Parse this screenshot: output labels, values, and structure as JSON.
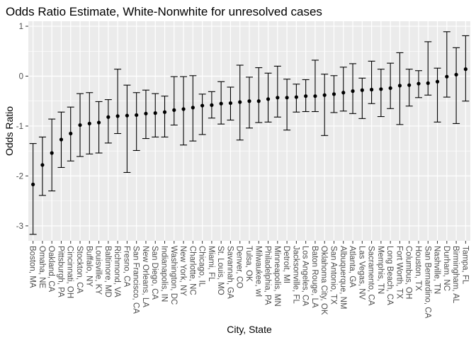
{
  "chart_data": {
    "type": "errorbar",
    "title": "Odds Ratio Estimate, White-Nonwhite for unresolved cases",
    "xlabel": "City, State",
    "ylabel": "Odds Ratio",
    "ylim": [
      -3.3,
      1.1
    ],
    "yticks": [
      -3,
      -2,
      -1,
      0,
      1
    ],
    "grid": true,
    "background": "#ebebeb",
    "grid_color": "#ffffff",
    "point_color": "#000000",
    "categories": [
      "Boston, MA",
      "Omaha, NE",
      "Oakland, CA",
      "Pittsburgh, PA",
      "Cincinnati, OH",
      "Stockton, CA",
      "Buffalo, NY",
      "Louisville, KY",
      "Baltimore, MD",
      "Richmond, VA",
      "Fresno, CA",
      "San Francisco, CA",
      "New Orleans, LA",
      "San Diego, CA",
      "Indianapolis, IN",
      "Washington, DC",
      "New York, NY",
      "Charlotte, NC",
      "Chicago, IL",
      "Miami, FL",
      "St. Louis, MO",
      "Savannah, GA",
      "Denver, CO",
      "Tulsa, OK",
      "Milwaukee, wI",
      "Philadelphia, PA",
      "Minneapolis, MN",
      "Detroit, MI",
      "Jacksonville, FL",
      "Los Angeles, CA",
      "Baton Rouge, LA",
      "Oklahoma City, OK",
      "San Antonio, TX",
      "Albuquerque, NM",
      "Atlanta, GA",
      "Las Vegas, NV",
      "Sacramento, CA",
      "Memphis, TN",
      "Long Beach, CA",
      "Fort Worth, TX",
      "Columbus, OH",
      "Houston, TX",
      "San Bernardino, CA",
      "Nashville, TN",
      "Durham, NC",
      "Birmingham, AL",
      "Tampa, FL"
    ],
    "estimates": [
      -2.17,
      -1.78,
      -1.54,
      -1.27,
      -1.15,
      -0.98,
      -0.95,
      -0.93,
      -0.82,
      -0.8,
      -0.79,
      -0.78,
      -0.75,
      -0.74,
      -0.72,
      -0.68,
      -0.66,
      -0.63,
      -0.59,
      -0.58,
      -0.55,
      -0.54,
      -0.52,
      -0.5,
      -0.5,
      -0.46,
      -0.43,
      -0.43,
      -0.42,
      -0.4,
      -0.4,
      -0.38,
      -0.36,
      -0.33,
      -0.3,
      -0.28,
      -0.27,
      -0.26,
      -0.24,
      -0.19,
      -0.18,
      -0.15,
      -0.14,
      -0.11,
      -0.01,
      0.03,
      0.14
    ],
    "lower": [
      -3.17,
      -2.39,
      -2.3,
      -1.83,
      -1.7,
      -1.61,
      -1.56,
      -1.54,
      -1.34,
      -1.15,
      -1.93,
      -1.49,
      -1.25,
      -1.22,
      -1.22,
      -0.98,
      -1.38,
      -1.3,
      -1.17,
      -0.84,
      -0.96,
      -0.88,
      -1.28,
      -1.04,
      -0.93,
      -0.92,
      -0.82,
      -1.08,
      -0.72,
      -0.71,
      -0.71,
      -1.19,
      -0.73,
      -0.7,
      -0.75,
      -0.85,
      -0.55,
      -0.81,
      -0.65,
      -0.97,
      -0.6,
      -0.43,
      -0.38,
      -0.92,
      -0.42,
      -0.95,
      -0.5
    ],
    "upper": [
      -1.35,
      -1.22,
      -0.86,
      -0.72,
      -0.62,
      -0.35,
      -0.33,
      -0.51,
      -0.47,
      0.14,
      -0.18,
      -0.33,
      -0.28,
      -0.35,
      -0.4,
      -0.01,
      -0.01,
      0.01,
      -0.36,
      -0.31,
      -0.11,
      -0.22,
      0.22,
      -0.02,
      0.17,
      0.06,
      0.2,
      -0.06,
      -0.16,
      -0.07,
      0.32,
      0.04,
      0.01,
      0.18,
      0.25,
      -0.04,
      0.3,
      0.14,
      0.26,
      0.47,
      0.14,
      0.11,
      0.69,
      0.16,
      0.89,
      0.57,
      0.81
    ]
  }
}
